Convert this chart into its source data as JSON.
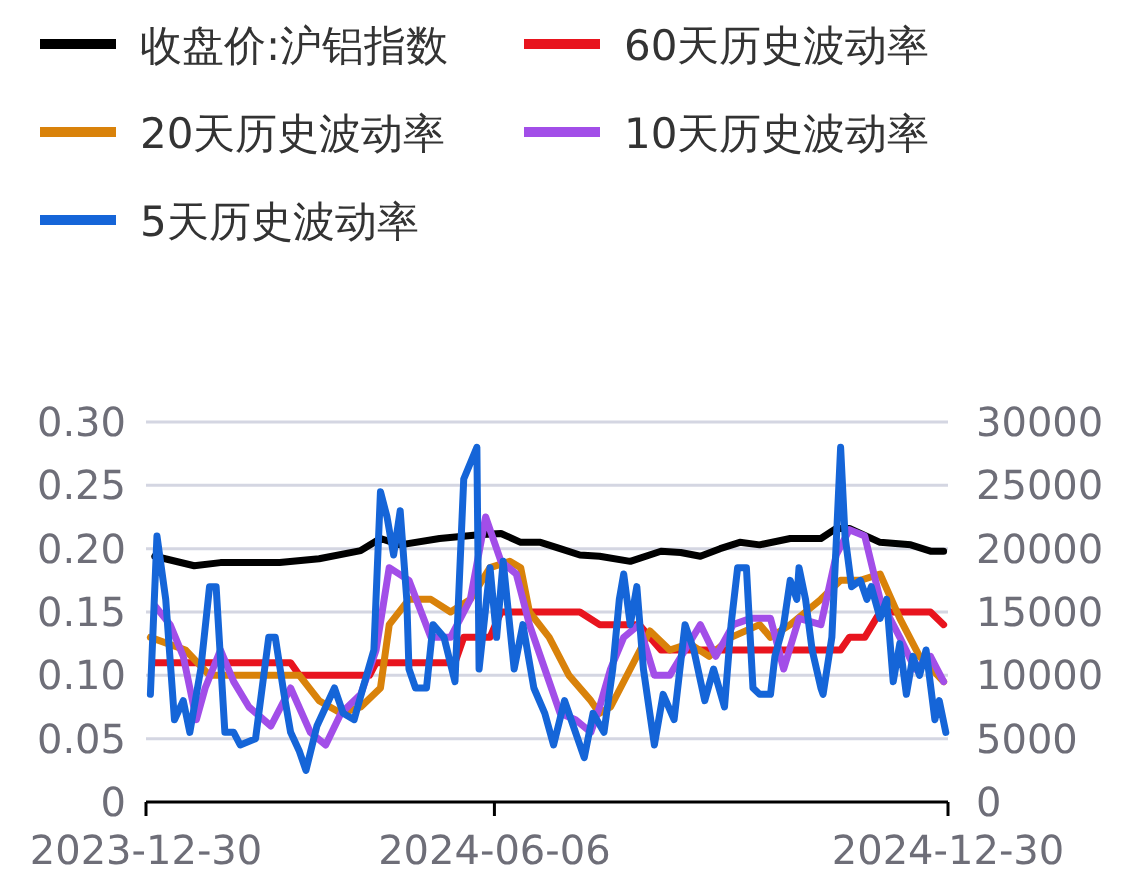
{
  "chart_data": {
    "type": "line",
    "xlim": [
      "2023-12-30",
      "2024-12-30"
    ],
    "xticks": [
      {
        "value": "2023-12-30",
        "label": "2023-12-30"
      },
      {
        "value": "2024-06-06",
        "label": "2024-06-06"
      },
      {
        "value": "2024-12-30",
        "label": "2024-12-30"
      }
    ],
    "ylim": [
      0,
      0.3
    ],
    "yticks": [
      {
        "value": 0,
        "label": "0"
      },
      {
        "value": 0.05,
        "label": "0.05"
      },
      {
        "value": 0.1,
        "label": "0.10"
      },
      {
        "value": 0.15,
        "label": "0.15"
      },
      {
        "value": 0.2,
        "label": "0.20"
      },
      {
        "value": 0.25,
        "label": "0.25"
      },
      {
        "value": 0.3,
        "label": "0.30"
      }
    ],
    "y2lim": [
      0,
      30000
    ],
    "y2ticks": [
      0,
      5000,
      10000,
      15000,
      20000,
      25000,
      30000
    ],
    "grid": "y",
    "legend": "top",
    "line_style": "solid",
    "marker": "none",
    "series": [
      {
        "name": "收盘价:沪铝指数",
        "color": "#000000",
        "axis": "y2",
        "x": [
          "2024-01-03",
          "2024-01-21",
          "2024-02-02",
          "2024-02-29",
          "2024-03-18",
          "2024-04-06",
          "2024-04-15",
          "2024-04-24",
          "2024-05-12",
          "2024-05-30",
          "2024-06-09",
          "2024-06-18",
          "2024-06-27",
          "2024-07-06",
          "2024-07-15",
          "2024-07-24",
          "2024-08-07",
          "2024-08-21",
          "2024-08-30",
          "2024-09-08",
          "2024-09-17",
          "2024-09-26",
          "2024-10-05",
          "2024-10-19",
          "2024-11-02",
          "2024-11-09",
          "2024-11-15",
          "2024-11-29",
          "2024-12-13",
          "2024-12-22",
          "2024-12-28"
        ],
        "values": [
          19400,
          18650,
          18900,
          18900,
          19200,
          19850,
          20800,
          20300,
          20800,
          21100,
          21200,
          20500,
          20500,
          20000,
          19500,
          19400,
          19000,
          19800,
          19700,
          19400,
          20000,
          20500,
          20300,
          20800,
          20800,
          21600,
          21600,
          20500,
          20300,
          19800,
          19800
        ]
      },
      {
        "name": "60天历史波动率",
        "color": "#e8141e",
        "x": [
          "2024-01-03",
          "2024-03-05",
          "2024-03-09",
          "2024-04-10",
          "2024-04-13",
          "2024-05-19",
          "2024-05-23",
          "2024-06-04",
          "2024-06-09",
          "2024-07-15",
          "2024-07-24",
          "2024-08-11",
          "2024-08-21",
          "2024-11-11",
          "2024-11-15",
          "2024-11-22",
          "2024-11-29",
          "2024-12-22",
          "2024-12-28"
        ],
        "values": [
          0.11,
          0.11,
          0.1,
          0.1,
          0.11,
          0.11,
          0.13,
          0.13,
          0.15,
          0.15,
          0.14,
          0.14,
          0.12,
          0.12,
          0.13,
          0.13,
          0.15,
          0.15,
          0.14
        ]
      },
      {
        "name": "20天历史波动率",
        "color": "#d9820a",
        "x": [
          "2024-01-01",
          "2024-01-17",
          "2024-01-28",
          "2024-03-09",
          "2024-03-18",
          "2024-03-28",
          "2024-04-06",
          "2024-04-15",
          "2024-04-19",
          "2024-04-28",
          "2024-05-08",
          "2024-05-17",
          "2024-05-26",
          "2024-06-04",
          "2024-06-13",
          "2024-06-18",
          "2024-06-22",
          "2024-07-01",
          "2024-07-10",
          "2024-07-20",
          "2024-07-24",
          "2024-07-29",
          "2024-08-07",
          "2024-08-16",
          "2024-08-25",
          "2024-09-03",
          "2024-09-12",
          "2024-09-22",
          "2024-10-05",
          "2024-10-10",
          "2024-10-19",
          "2024-11-02",
          "2024-11-11",
          "2024-11-20",
          "2024-11-29",
          "2024-12-08",
          "2024-12-17",
          "2024-12-28"
        ],
        "values": [
          0.13,
          0.12,
          0.1,
          0.1,
          0.08,
          0.07,
          0.075,
          0.09,
          0.14,
          0.16,
          0.16,
          0.15,
          0.16,
          0.185,
          0.19,
          0.185,
          0.15,
          0.13,
          0.1,
          0.08,
          0.07,
          0.075,
          0.105,
          0.135,
          0.12,
          0.125,
          0.115,
          0.13,
          0.14,
          0.13,
          0.14,
          0.16,
          0.175,
          0.175,
          0.18,
          0.145,
          0.115,
          0.095
        ]
      },
      {
        "name": "10天历史波动率",
        "color": "#a24ee8",
        "x": [
          "2024-01-03",
          "2024-01-10",
          "2024-01-16",
          "2024-01-22",
          "2024-01-26",
          "2024-02-02",
          "2024-02-08",
          "2024-02-15",
          "2024-02-25",
          "2024-03-05",
          "2024-03-14",
          "2024-03-21",
          "2024-03-28",
          "2024-04-06",
          "2024-04-13",
          "2024-04-19",
          "2024-04-28",
          "2024-05-08",
          "2024-05-17",
          "2024-05-26",
          "2024-06-02",
          "2024-06-09",
          "2024-06-16",
          "2024-06-22",
          "2024-06-29",
          "2024-07-06",
          "2024-07-13",
          "2024-07-20",
          "2024-07-24",
          "2024-07-29",
          "2024-08-04",
          "2024-08-11",
          "2024-08-18",
          "2024-08-25",
          "2024-09-01",
          "2024-09-08",
          "2024-09-15",
          "2024-09-23",
          "2024-10-01",
          "2024-10-10",
          "2024-10-16",
          "2024-10-23",
          "2024-11-02",
          "2024-11-09",
          "2024-11-15",
          "2024-11-22",
          "2024-11-29",
          "2024-12-08",
          "2024-12-15",
          "2024-12-22",
          "2024-12-28"
        ],
        "values": [
          0.155,
          0.14,
          0.115,
          0.065,
          0.09,
          0.12,
          0.095,
          0.075,
          0.06,
          0.09,
          0.055,
          0.045,
          0.07,
          0.085,
          0.12,
          0.185,
          0.175,
          0.13,
          0.13,
          0.16,
          0.225,
          0.19,
          0.18,
          0.14,
          0.105,
          0.07,
          0.065,
          0.055,
          0.075,
          0.105,
          0.13,
          0.14,
          0.1,
          0.1,
          0.12,
          0.14,
          0.115,
          0.14,
          0.145,
          0.145,
          0.105,
          0.145,
          0.14,
          0.195,
          0.215,
          0.21,
          0.16,
          0.13,
          0.105,
          0.115,
          0.095
        ]
      },
      {
        "name": "5天历史波动率",
        "color": "#1565d8",
        "x": [
          "2024-01-01",
          "2024-01-04",
          "2024-01-08",
          "2024-01-12",
          "2024-01-16",
          "2024-01-19",
          "2024-01-24",
          "2024-01-28",
          "2024-01-31",
          "2024-02-04",
          "2024-02-08",
          "2024-02-11",
          "2024-02-18",
          "2024-02-24",
          "2024-02-27",
          "2024-03-02",
          "2024-03-05",
          "2024-03-09",
          "2024-03-12",
          "2024-03-17",
          "2024-03-21",
          "2024-03-25",
          "2024-03-29",
          "2024-04-03",
          "2024-04-07",
          "2024-04-12",
          "2024-04-15",
          "2024-04-18",
          "2024-04-21",
          "2024-04-24",
          "2024-04-27",
          "2024-04-28",
          "2024-05-01",
          "2024-05-06",
          "2024-05-09",
          "2024-05-14",
          "2024-05-19",
          "2024-05-23",
          "2024-05-29",
          "2024-05-30",
          "2024-06-04",
          "2024-06-07",
          "2024-06-10",
          "2024-06-15",
          "2024-06-19",
          "2024-06-24",
          "2024-06-29",
          "2024-07-03",
          "2024-07-08",
          "2024-07-12",
          "2024-07-17",
          "2024-07-21",
          "2024-07-26",
          "2024-07-30",
          "2024-08-02",
          "2024-08-04",
          "2024-08-07",
          "2024-08-10",
          "2024-08-13",
          "2024-08-18",
          "2024-08-22",
          "2024-08-27",
          "2024-09-01",
          "2024-09-05",
          "2024-09-10",
          "2024-09-14",
          "2024-09-19",
          "2024-09-22",
          "2024-09-25",
          "2024-09-29",
          "2024-10-02",
          "2024-10-05",
          "2024-10-10",
          "2024-10-12",
          "2024-10-16",
          "2024-10-19",
          "2024-10-22",
          "2024-10-23",
          "2024-10-26",
          "2024-10-29",
          "2024-11-02",
          "2024-11-03",
          "2024-11-07",
          "2024-11-11",
          "2024-11-13",
          "2024-11-16",
          "2024-11-20",
          "2024-11-23",
          "2024-11-25",
          "2024-11-29",
          "2024-12-02",
          "2024-12-05",
          "2024-12-08",
          "2024-12-11",
          "2024-12-14",
          "2024-12-17",
          "2024-12-20",
          "2024-12-24",
          "2024-12-26",
          "2024-12-29"
        ],
        "values": [
          0.085,
          0.21,
          0.16,
          0.065,
          0.08,
          0.055,
          0.105,
          0.17,
          0.17,
          0.055,
          0.055,
          0.045,
          0.05,
          0.13,
          0.13,
          0.085,
          0.055,
          0.04,
          0.025,
          0.06,
          0.075,
          0.09,
          0.07,
          0.065,
          0.09,
          0.12,
          0.245,
          0.225,
          0.195,
          0.23,
          0.16,
          0.105,
          0.09,
          0.09,
          0.14,
          0.13,
          0.095,
          0.255,
          0.28,
          0.105,
          0.185,
          0.13,
          0.19,
          0.105,
          0.14,
          0.09,
          0.07,
          0.045,
          0.08,
          0.06,
          0.035,
          0.07,
          0.055,
          0.105,
          0.16,
          0.18,
          0.14,
          0.17,
          0.105,
          0.045,
          0.085,
          0.065,
          0.14,
          0.12,
          0.08,
          0.105,
          0.075,
          0.14,
          0.185,
          0.185,
          0.09,
          0.085,
          0.085,
          0.115,
          0.14,
          0.175,
          0.16,
          0.185,
          0.16,
          0.12,
          0.09,
          0.085,
          0.13,
          0.28,
          0.21,
          0.17,
          0.175,
          0.16,
          0.17,
          0.145,
          0.16,
          0.095,
          0.125,
          0.085,
          0.115,
          0.1,
          0.12,
          0.065,
          0.08,
          0.055
        ]
      }
    ]
  }
}
